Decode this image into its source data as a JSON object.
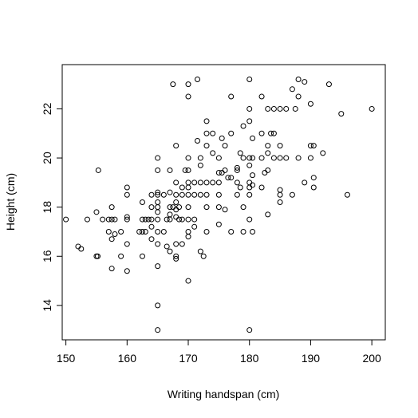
{
  "chart_data": {
    "type": "scatter",
    "title": "",
    "xlabel": "Writing handspan (cm)",
    "ylabel": "Height (cm)",
    "xlim": [
      149.4,
      202.2
    ],
    "ylim": [
      12.6,
      23.8
    ],
    "xticks": [
      150,
      160,
      170,
      180,
      190,
      200
    ],
    "yticks": [
      14,
      16,
      18,
      20,
      22
    ],
    "grid": false,
    "legend": "none",
    "marker": "open-circle",
    "series": [
      {
        "points": [
          [
            150,
            17.5
          ],
          [
            152,
            16.4
          ],
          [
            152.5,
            16.3
          ],
          [
            153.5,
            17.5
          ],
          [
            155,
            17.8
          ],
          [
            155,
            16.0
          ],
          [
            155.2,
            16.0
          ],
          [
            155.3,
            19.5
          ],
          [
            156,
            17.5
          ],
          [
            157,
            17.5
          ],
          [
            157,
            17.0
          ],
          [
            157.5,
            18.0
          ],
          [
            157.5,
            17.5
          ],
          [
            158,
            17.5
          ],
          [
            157.5,
            16.7
          ],
          [
            158,
            16.9
          ],
          [
            157.5,
            15.5
          ],
          [
            159,
            17.0
          ],
          [
            159,
            16.0
          ],
          [
            160,
            18.8
          ],
          [
            160,
            18.5
          ],
          [
            160,
            17.6
          ],
          [
            160,
            17.5
          ],
          [
            160,
            16.5
          ],
          [
            160,
            15.4
          ],
          [
            162,
            17.0
          ],
          [
            162.5,
            18.2
          ],
          [
            162.5,
            17.5
          ],
          [
            162.5,
            17.0
          ],
          [
            162.5,
            16.0
          ],
          [
            163,
            17.5
          ],
          [
            163,
            17.0
          ],
          [
            163.5,
            17.5
          ],
          [
            164,
            18.5
          ],
          [
            164,
            18.0
          ],
          [
            164,
            17.5
          ],
          [
            164,
            17.2
          ],
          [
            164,
            16.7
          ],
          [
            165,
            20.0
          ],
          [
            165,
            19.5
          ],
          [
            165,
            18.6
          ],
          [
            165,
            18.5
          ],
          [
            165,
            18.2
          ],
          [
            165,
            18.0
          ],
          [
            165,
            17.8
          ],
          [
            165,
            17.5
          ],
          [
            165,
            17.0
          ],
          [
            165,
            16.5
          ],
          [
            165,
            15.6
          ],
          [
            165,
            14.0
          ],
          [
            165,
            13.0
          ],
          [
            166,
            18.5
          ],
          [
            166,
            17.0
          ],
          [
            166.5,
            17.5
          ],
          [
            166.5,
            16.4
          ],
          [
            167,
            19.5
          ],
          [
            167,
            18.6
          ],
          [
            167,
            18.0
          ],
          [
            167,
            17.7
          ],
          [
            167,
            17.5
          ],
          [
            167,
            16.2
          ],
          [
            167.5,
            23.0
          ],
          [
            167.5,
            18.0
          ],
          [
            168,
            20.5
          ],
          [
            168,
            19.0
          ],
          [
            168,
            18.5
          ],
          [
            168,
            18.2
          ],
          [
            168,
            17.9
          ],
          [
            168,
            17.6
          ],
          [
            168,
            16.5
          ],
          [
            168,
            16.0
          ],
          [
            168,
            15.9
          ],
          [
            168.5,
            18.0
          ],
          [
            168.5,
            17.5
          ],
          [
            169,
            18.8
          ],
          [
            169,
            18.5
          ],
          [
            169,
            17.5
          ],
          [
            169,
            16.5
          ],
          [
            169.5,
            19.5
          ],
          [
            170,
            23.0
          ],
          [
            170,
            22.5
          ],
          [
            170,
            20.0
          ],
          [
            170,
            19.5
          ],
          [
            170,
            19.0
          ],
          [
            170,
            18.8
          ],
          [
            170,
            18.5
          ],
          [
            170,
            18.0
          ],
          [
            170,
            17.5
          ],
          [
            170,
            17.0
          ],
          [
            170,
            16.8
          ],
          [
            170,
            15.0
          ],
          [
            171,
            19.0
          ],
          [
            171,
            18.5
          ],
          [
            171,
            17.5
          ],
          [
            171,
            17.2
          ],
          [
            171.5,
            23.2
          ],
          [
            171.5,
            20.7
          ],
          [
            172,
            20.0
          ],
          [
            172,
            19.7
          ],
          [
            172,
            19.0
          ],
          [
            172,
            18.5
          ],
          [
            172,
            16.2
          ],
          [
            172.5,
            16.0
          ],
          [
            173,
            21.5
          ],
          [
            173,
            21.0
          ],
          [
            173,
            20.5
          ],
          [
            173,
            19.0
          ],
          [
            173,
            18.5
          ],
          [
            173,
            18.0
          ],
          [
            173,
            17.0
          ],
          [
            174,
            21.0
          ],
          [
            174,
            20.2
          ],
          [
            174,
            19.0
          ],
          [
            175,
            20.0
          ],
          [
            175,
            19.4
          ],
          [
            175,
            19.0
          ],
          [
            175,
            18.5
          ],
          [
            175,
            18.0
          ],
          [
            175,
            17.3
          ],
          [
            175.5,
            20.8
          ],
          [
            175.5,
            19.4
          ],
          [
            176,
            20.5
          ],
          [
            176,
            19.5
          ],
          [
            176,
            17.9
          ],
          [
            176.5,
            19.2
          ],
          [
            177,
            22.5
          ],
          [
            177,
            21.0
          ],
          [
            177,
            19.2
          ],
          [
            177,
            17.0
          ],
          [
            178,
            19.6
          ],
          [
            178,
            19.5
          ],
          [
            178,
            19.0
          ],
          [
            178,
            18.5
          ],
          [
            178.5,
            20.2
          ],
          [
            178.5,
            18.8
          ],
          [
            179,
            21.3
          ],
          [
            179,
            20.0
          ],
          [
            179,
            18.0
          ],
          [
            179,
            17.0
          ],
          [
            180,
            23.2
          ],
          [
            180,
            22.0
          ],
          [
            180,
            21.5
          ],
          [
            180,
            20.0
          ],
          [
            180,
            19.7
          ],
          [
            180,
            19.0
          ],
          [
            180,
            18.8
          ],
          [
            180,
            18.5
          ],
          [
            180,
            17.5
          ],
          [
            180,
            13.0
          ],
          [
            180.5,
            20.8
          ],
          [
            180.5,
            20.0
          ],
          [
            180.5,
            19.3
          ],
          [
            180.5,
            18.9
          ],
          [
            180.5,
            17.0
          ],
          [
            182,
            22.5
          ],
          [
            182,
            21.0
          ],
          [
            182,
            20.0
          ],
          [
            182,
            18.8
          ],
          [
            182.5,
            19.4
          ],
          [
            183,
            22.0
          ],
          [
            183,
            20.5
          ],
          [
            183,
            20.2
          ],
          [
            183,
            19.5
          ],
          [
            183,
            17.7
          ],
          [
            183.5,
            21.0
          ],
          [
            184,
            22.0
          ],
          [
            184,
            21.0
          ],
          [
            184,
            20.0
          ],
          [
            185,
            22.0
          ],
          [
            185,
            20.5
          ],
          [
            185,
            20.0
          ],
          [
            185,
            18.7
          ],
          [
            185,
            18.5
          ],
          [
            185,
            18.2
          ],
          [
            186,
            22.0
          ],
          [
            186,
            20.0
          ],
          [
            187,
            22.8
          ],
          [
            187.5,
            22.0
          ],
          [
            187,
            18.5
          ],
          [
            188,
            23.2
          ],
          [
            188,
            22.5
          ],
          [
            188,
            20.0
          ],
          [
            189,
            23.1
          ],
          [
            189,
            19.0
          ],
          [
            190,
            22.2
          ],
          [
            190,
            20.5
          ],
          [
            190,
            20.0
          ],
          [
            190.5,
            20.5
          ],
          [
            190.5,
            19.2
          ],
          [
            190.5,
            18.8
          ],
          [
            192,
            20.2
          ],
          [
            193,
            23.0
          ],
          [
            195,
            21.8
          ],
          [
            196,
            18.5
          ],
          [
            200,
            22.0
          ]
        ]
      }
    ]
  }
}
